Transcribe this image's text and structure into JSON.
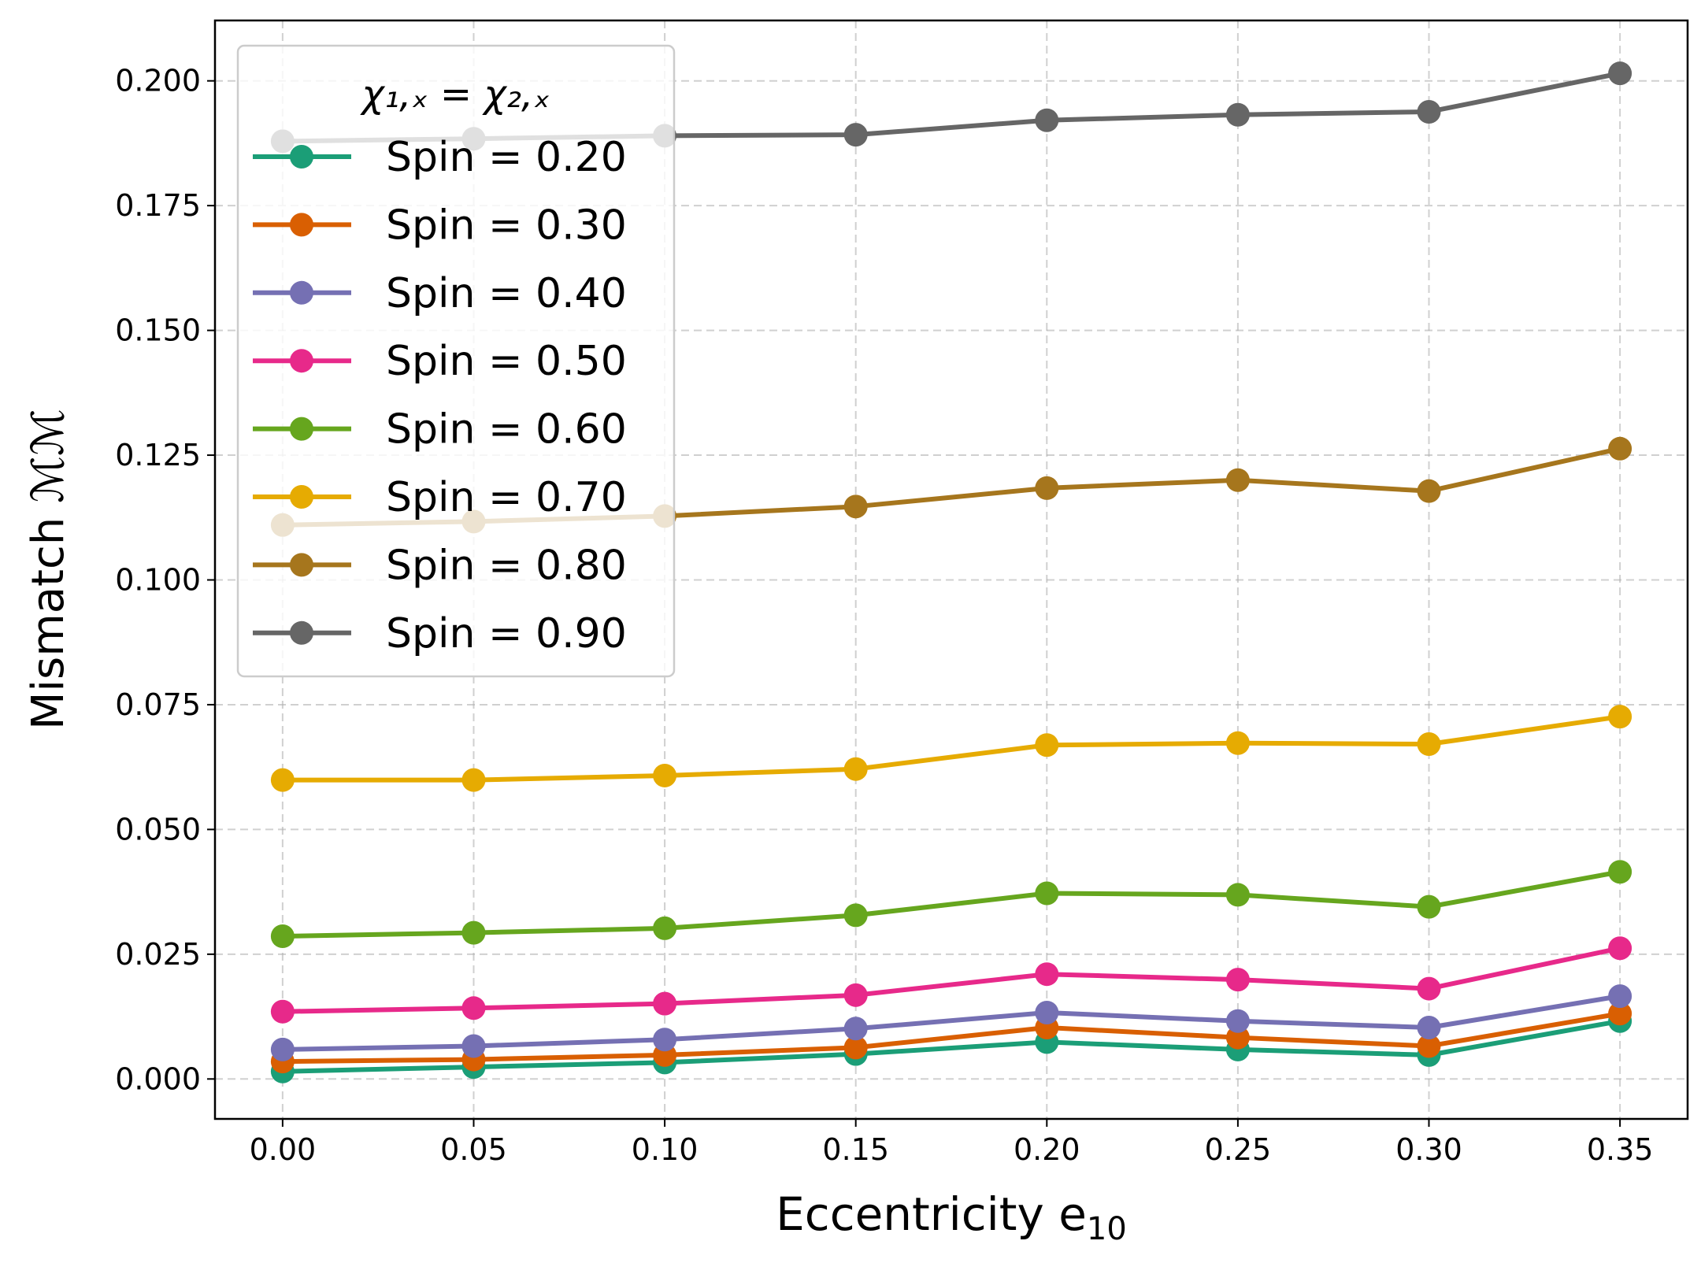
{
  "chart_data": {
    "type": "line",
    "title": "",
    "xlabel": "Eccentricity e",
    "xlabel_sub": "10",
    "ylabel": "Mismatch ℳℳ",
    "xlim": [
      -0.0177,
      0.3677
    ],
    "ylim": [
      -0.008,
      0.2121
    ],
    "grid": true,
    "x_ticks": [
      0.0,
      0.05,
      0.1,
      0.15,
      0.2,
      0.25,
      0.3,
      0.35
    ],
    "x_tick_labels": [
      "0.00",
      "0.05",
      "0.10",
      "0.15",
      "0.20",
      "0.25",
      "0.30",
      "0.35"
    ],
    "y_ticks": [
      0.0,
      0.025,
      0.05,
      0.075,
      0.1,
      0.125,
      0.15,
      0.175,
      0.2
    ],
    "y_tick_labels": [
      "0.000",
      "0.025",
      "0.050",
      "0.075",
      "0.100",
      "0.125",
      "0.150",
      "0.175",
      "0.200"
    ],
    "legend": {
      "title": "χ₁,ₓ = χ₂,ₓ",
      "placement": "upper-left"
    },
    "x": [
      0.0,
      0.05,
      0.1,
      0.15,
      0.2,
      0.25,
      0.3,
      0.35
    ],
    "series": [
      {
        "name": "Spin = 0.20",
        "color": "#1b9e77",
        "values": [
          0.0015,
          0.0024,
          0.0033,
          0.005,
          0.0074,
          0.0059,
          0.0048,
          0.0116
        ]
      },
      {
        "name": "Spin = 0.30",
        "color": "#d95f02",
        "values": [
          0.0035,
          0.0039,
          0.0048,
          0.0063,
          0.0103,
          0.0083,
          0.0066,
          0.0131
        ]
      },
      {
        "name": "Spin = 0.40",
        "color": "#7570b3",
        "values": [
          0.0059,
          0.0066,
          0.0079,
          0.0101,
          0.0133,
          0.0116,
          0.0103,
          0.0166
        ]
      },
      {
        "name": "Spin = 0.50",
        "color": "#e7298a",
        "values": [
          0.0135,
          0.0142,
          0.0151,
          0.0168,
          0.021,
          0.0199,
          0.0181,
          0.0262
        ]
      },
      {
        "name": "Spin = 0.60",
        "color": "#66a61e",
        "values": [
          0.0286,
          0.0293,
          0.0302,
          0.0328,
          0.0372,
          0.0369,
          0.0345,
          0.0415
        ]
      },
      {
        "name": "Spin = 0.70",
        "color": "#e6ab02",
        "values": [
          0.0599,
          0.0599,
          0.0608,
          0.0621,
          0.0669,
          0.0673,
          0.0671,
          0.0726
        ]
      },
      {
        "name": "Spin = 0.80",
        "color": "#a6761d",
        "values": [
          0.111,
          0.1117,
          0.1128,
          0.1147,
          0.1184,
          0.12,
          0.1178,
          0.1263
        ]
      },
      {
        "name": "Spin = 0.90",
        "color": "#666666",
        "values": [
          0.1879,
          0.1884,
          0.189,
          0.1892,
          0.1921,
          0.1932,
          0.1938,
          0.2015
        ]
      }
    ]
  }
}
